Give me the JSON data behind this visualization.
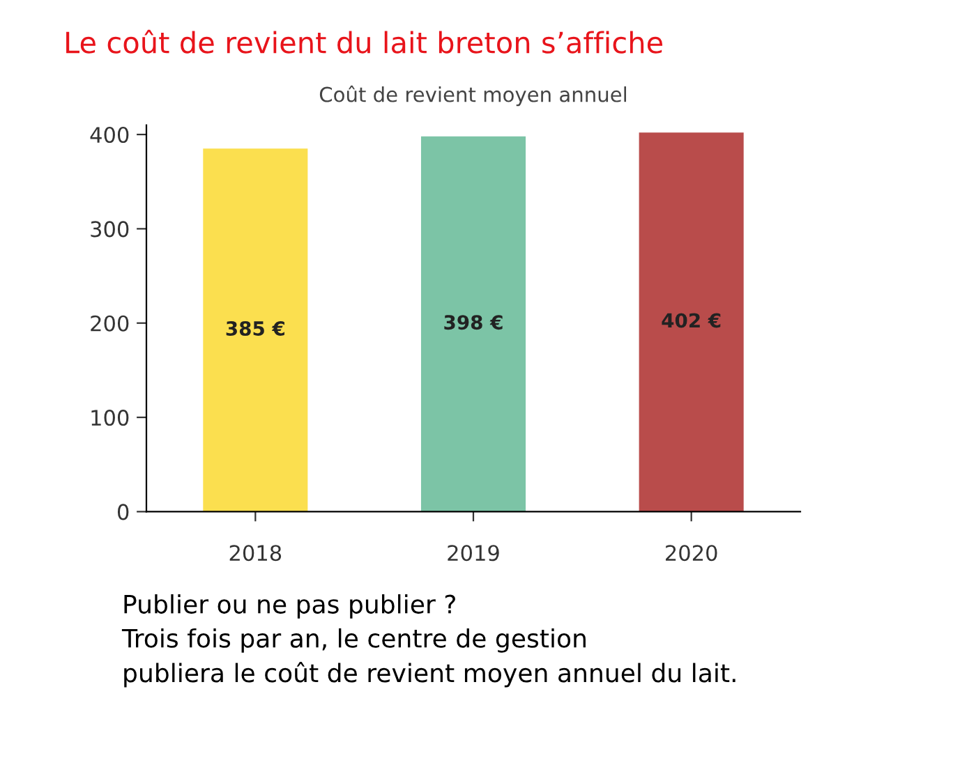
{
  "chart_data": {
    "type": "bar",
    "title": "Le coût de revient du lait breton s’affiche",
    "subtitle": "Coût de revient moyen annuel",
    "categories": [
      "2018",
      "2019",
      "2020"
    ],
    "values": [
      385,
      398,
      402
    ],
    "colors": [
      "#fbdf4f",
      "#7cc4a6",
      "#b94c4b"
    ],
    "value_labels": [
      "385 €",
      "398 €",
      "402 €"
    ],
    "ylim": [
      0,
      410
    ],
    "yticks": [
      0,
      100,
      200,
      300,
      400
    ],
    "grid": false,
    "legend": false,
    "annotations": [
      "Publier ou ne pas publier ?",
      "Trois fois par an, le centre de gestion",
      "publiera le coût de revient moyen annuel du lait."
    ]
  }
}
